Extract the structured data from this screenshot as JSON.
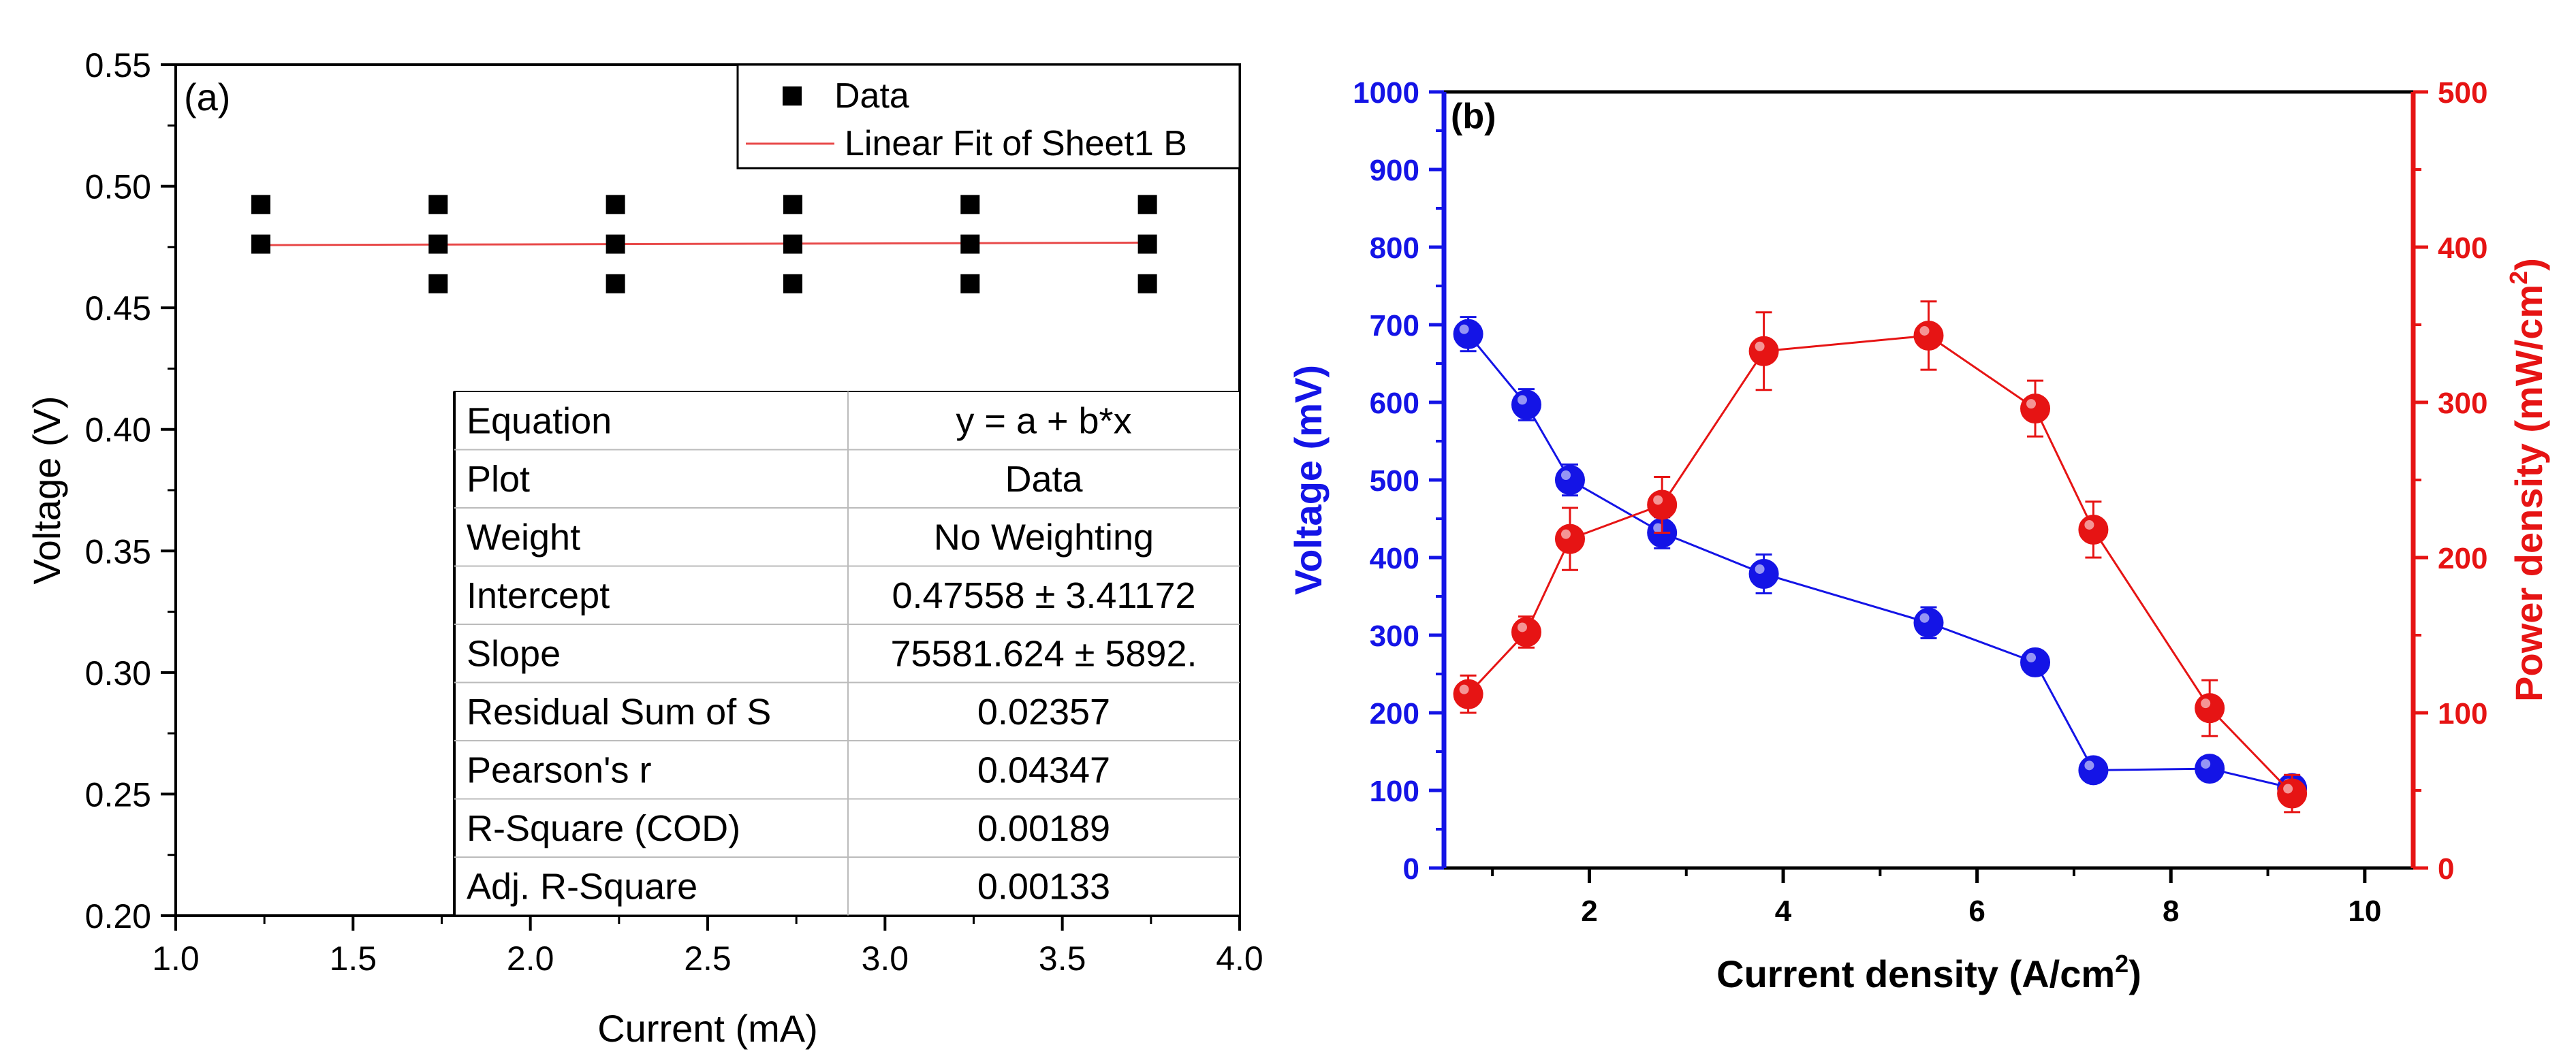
{
  "chart_data": [
    {
      "panel": "(a)",
      "type": "scatter",
      "xlabel": "Current (mA)",
      "ylabel": "Voltage (V)",
      "xlim": [
        1.0,
        4.0
      ],
      "ylim": [
        0.2,
        0.55
      ],
      "xticks": [
        "1.0",
        "1.5",
        "2.0",
        "2.5",
        "3.0",
        "3.5",
        "4.0"
      ],
      "yticks": [
        "0.20",
        "0.25",
        "0.30",
        "0.35",
        "0.40",
        "0.45",
        "0.50",
        "0.55"
      ],
      "series": [
        {
          "name": "Data",
          "points": [
            [
              1.24,
              0.4925
            ],
            [
              1.24,
              0.4762
            ],
            [
              1.74,
              0.4925
            ],
            [
              1.74,
              0.4762
            ],
            [
              1.74,
              0.4599
            ],
            [
              2.24,
              0.4925
            ],
            [
              2.24,
              0.4762
            ],
            [
              2.24,
              0.4599
            ],
            [
              2.74,
              0.4925
            ],
            [
              2.74,
              0.4762
            ],
            [
              2.74,
              0.4599
            ],
            [
              3.24,
              0.4925
            ],
            [
              3.24,
              0.4762
            ],
            [
              3.24,
              0.4599
            ],
            [
              3.74,
              0.4925
            ],
            [
              3.74,
              0.4762
            ],
            [
              3.74,
              0.4599
            ]
          ]
        },
        {
          "name": "Linear Fit of Sheet1 B",
          "fit_line": [
            [
              1.24,
              0.4758
            ],
            [
              3.74,
              0.4768
            ]
          ]
        }
      ],
      "legend": [
        "Data",
        "Linear Fit of Sheet1 B"
      ],
      "fit_table": [
        [
          "Equation",
          "y = a + b*x"
        ],
        [
          "Plot",
          "Data"
        ],
        [
          "Weight",
          "No Weighting"
        ],
        [
          "Intercept",
          "0.47558 ± 3.41172"
        ],
        [
          "Slope",
          "75581.624 ± 5892."
        ],
        [
          "Residual Sum of S",
          "0.02357"
        ],
        [
          "Pearson's r",
          "0.04347"
        ],
        [
          "R-Square (COD)",
          "0.00189"
        ],
        [
          "Adj. R-Square",
          "0.00133"
        ]
      ]
    },
    {
      "panel": "(b)",
      "type": "line",
      "xlabel": "Current density (A/cm",
      "xlabel_sup": "2",
      "xlabel_end": ")",
      "ylabel_left": "Voltage (mV)",
      "ylabel_right": "Power density (mW/cm",
      "ylabel_right_sup": "2",
      "ylabel_right_end": ")",
      "xlim": [
        0.5,
        10.5
      ],
      "ylim_left": [
        0,
        1000
      ],
      "ylim_right": [
        0,
        500
      ],
      "xticks": [
        "2",
        "4",
        "6",
        "8",
        "10"
      ],
      "yticks_left": [
        "0",
        "100",
        "200",
        "300",
        "400",
        "500",
        "600",
        "700",
        "800",
        "900",
        "1000"
      ],
      "yticks_right": [
        "0",
        "100",
        "200",
        "300",
        "400",
        "500"
      ],
      "colors": {
        "voltage": "#1414e6",
        "power": "#e61414"
      },
      "series": [
        {
          "name": "Voltage",
          "axis": "left",
          "x": [
            0.75,
            1.35,
            1.8,
            2.75,
            3.8,
            5.5,
            6.6,
            7.2,
            8.4,
            9.25
          ],
          "y": [
            688,
            597,
            500,
            432,
            379,
            316,
            265,
            126,
            128,
            103
          ],
          "err": [
            22,
            20,
            20,
            20,
            25,
            20,
            15,
            15,
            12,
            10
          ]
        },
        {
          "name": "Power density",
          "axis": "right",
          "x": [
            0.75,
            1.35,
            1.8,
            2.75,
            3.8,
            5.5,
            6.6,
            7.2,
            8.4,
            9.25
          ],
          "y": [
            112,
            152,
            212,
            234,
            333,
            343,
            296,
            218,
            103,
            48
          ],
          "err": [
            12,
            10,
            20,
            18,
            25,
            22,
            18,
            18,
            18,
            12
          ]
        }
      ]
    }
  ]
}
